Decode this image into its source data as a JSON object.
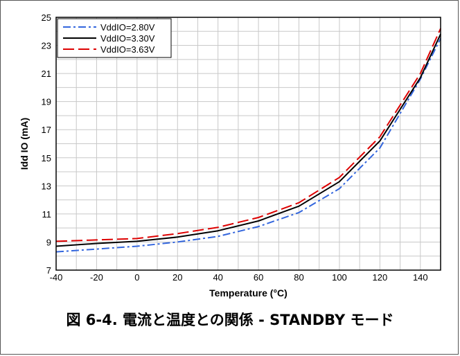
{
  "caption": "図 6-4. 電流と温度との関係 - STANDBY モード",
  "chart_data": {
    "type": "line",
    "title": "",
    "xlabel": "Temperature (°C)",
    "ylabel": "Idd IO (mA)",
    "xlim": [
      -40,
      150
    ],
    "ylim": [
      7,
      25
    ],
    "xticks": [
      -40,
      -20,
      0,
      20,
      40,
      60,
      80,
      100,
      120,
      140
    ],
    "yticks": [
      7,
      9,
      11,
      13,
      15,
      17,
      19,
      21,
      23,
      25
    ],
    "x_minor_step": 10,
    "grid": true,
    "legend_position": "top-left",
    "series": [
      {
        "name": "VddIO=2.80V",
        "color": "#3366dd",
        "dash": "dash-dot",
        "x": [
          -40,
          -20,
          0,
          20,
          40,
          60,
          80,
          100,
          120,
          140,
          150
        ],
        "y": [
          8.3,
          8.5,
          8.7,
          9.0,
          9.4,
          10.1,
          11.1,
          12.8,
          15.7,
          20.6,
          23.5
        ]
      },
      {
        "name": "VddIO=3.30V",
        "color": "#000000",
        "dash": "solid",
        "x": [
          -40,
          -20,
          0,
          20,
          40,
          60,
          80,
          100,
          120,
          140,
          150
        ],
        "y": [
          8.7,
          8.9,
          9.05,
          9.35,
          9.8,
          10.5,
          11.55,
          13.3,
          16.2,
          20.7,
          23.8
        ]
      },
      {
        "name": "VddIO=3.63V",
        "color": "#dd0000",
        "dash": "long-dash",
        "x": [
          -40,
          -20,
          0,
          20,
          40,
          60,
          80,
          100,
          120,
          140,
          150
        ],
        "y": [
          9.05,
          9.15,
          9.25,
          9.6,
          10.05,
          10.75,
          11.8,
          13.6,
          16.5,
          21.0,
          24.2
        ]
      }
    ]
  }
}
